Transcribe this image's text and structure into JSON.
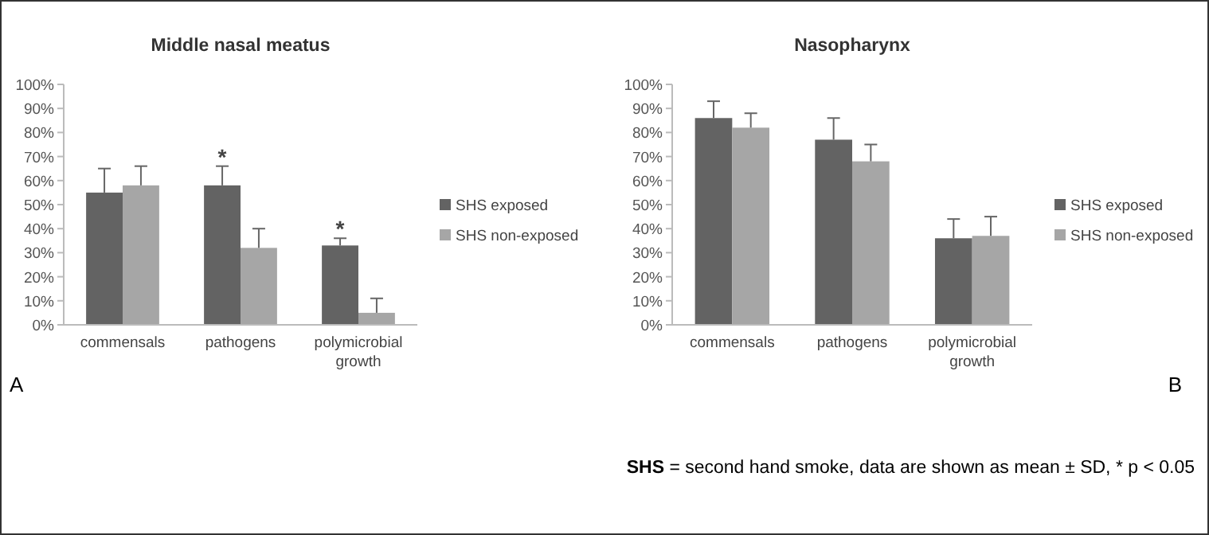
{
  "chart_data": [
    {
      "type": "bar",
      "title": "Middle nasal meatus",
      "categories": [
        "commensals",
        "pathogens",
        "polymicrobial growth"
      ],
      "series": [
        {
          "name": "SHS exposed",
          "color": "#636363",
          "values": [
            55,
            58,
            33
          ],
          "errors": [
            [
              55,
              65
            ],
            [
              58,
              66
            ],
            [
              33,
              36
            ]
          ]
        },
        {
          "name": "SHS non-exposed",
          "color": "#a6a6a6",
          "values": [
            58,
            32,
            5
          ],
          "errors": [
            [
              58,
              66
            ],
            [
              32,
              40
            ],
            [
              5,
              11
            ]
          ]
        }
      ],
      "ylim": [
        0,
        100
      ],
      "yticks": [
        {
          "value": 0,
          "label": "0%"
        },
        {
          "value": 10,
          "label": "10%"
        },
        {
          "value": 20,
          "label": "20%"
        },
        {
          "value": 30,
          "label": "30%"
        },
        {
          "value": 40,
          "label": "40%"
        },
        {
          "value": 50,
          "label": "50%"
        },
        {
          "value": 60,
          "label": "60%"
        },
        {
          "value": 70,
          "label": "70%"
        },
        {
          "value": 80,
          "label": "80%"
        },
        {
          "value": 90,
          "label": "90%"
        },
        {
          "value": 100,
          "label": "100%"
        }
      ],
      "grid": false,
      "legend": "right",
      "annotations": [
        "*",
        "*",
        "A"
      ]
    },
    {
      "type": "bar",
      "title": "Nasopharynx",
      "categories": [
        "commensals",
        "pathogens",
        "polymicrobial growth"
      ],
      "series": [
        {
          "name": "SHS exposed",
          "color": "#636363",
          "values": [
            86,
            77,
            36
          ],
          "errors": [
            [
              86,
              93
            ],
            [
              77,
              86
            ],
            [
              36,
              44
            ]
          ]
        },
        {
          "name": "SHS non-exposed",
          "color": "#a6a6a6",
          "values": [
            82,
            68,
            37
          ],
          "errors": [
            [
              82,
              88
            ],
            [
              68,
              75
            ],
            [
              37,
              45
            ]
          ]
        }
      ],
      "ylim": [
        0,
        100
      ],
      "yticks": [
        {
          "value": 0,
          "label": "0%"
        },
        {
          "value": 10,
          "label": "10%"
        },
        {
          "value": 20,
          "label": "20%"
        },
        {
          "value": 30,
          "label": "30%"
        },
        {
          "value": 40,
          "label": "40%"
        },
        {
          "value": 50,
          "label": "50%"
        },
        {
          "value": 60,
          "label": "60%"
        },
        {
          "value": 70,
          "label": "70%"
        },
        {
          "value": 80,
          "label": "80%"
        },
        {
          "value": 90,
          "label": "90%"
        },
        {
          "value": 100,
          "label": "100%"
        }
      ],
      "grid": false,
      "legend": "right",
      "annotations": [
        "B",
        "SHS = second hand smoke, data are shown as mean ± SD, * p < 0.05"
      ]
    }
  ]
}
